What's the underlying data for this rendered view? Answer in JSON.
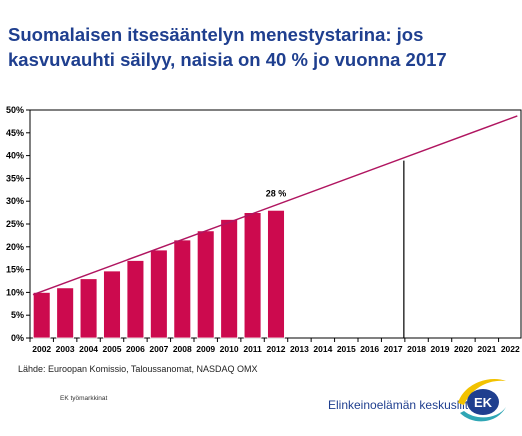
{
  "title": {
    "line1": "Suomalaisen itsesääntelyn menestystarina: jos",
    "line2": "kasvuvauhti säilyy, naisia on 40 % jo vuonna 2017"
  },
  "source": "Lähde: Euroopan Komissio, Taloussanomat, NASDAQ OMX",
  "footnote": "EK työmarkkinat",
  "logo": {
    "text": "Elinkeinoelämän keskusliitto",
    "badge": "EK"
  },
  "colors": {
    "bar": "#cc0a4e",
    "trend": "#b01560",
    "title": "#1f3f8f",
    "logo_blue": "#1f3f8f",
    "logo_yellow": "#f2c200",
    "logo_teal": "#2fa6b5"
  },
  "chart_data": {
    "type": "bar",
    "categories": [
      "2002",
      "2003",
      "2004",
      "2005",
      "2006",
      "2007",
      "2008",
      "2009",
      "2010",
      "2011",
      "2012",
      "2013",
      "2014",
      "2015",
      "2016",
      "2017",
      "2018",
      "2019",
      "2020",
      "2021",
      "2022"
    ],
    "values": [
      10,
      11,
      13,
      14.7,
      17,
      19.3,
      21.5,
      23.5,
      26,
      27.5,
      28,
      null,
      null,
      null,
      null,
      null,
      null,
      null,
      null,
      null,
      null
    ],
    "trend": {
      "x": [
        "2002",
        "2022"
      ],
      "y": [
        9.5,
        48.7
      ]
    },
    "marker_category": "2017",
    "data_label": {
      "category": "2012",
      "text": "28 %"
    },
    "yticks": [
      "0%",
      "5%",
      "10%",
      "15%",
      "20%",
      "25%",
      "30%",
      "35%",
      "40%",
      "45%",
      "50%"
    ],
    "ylim": [
      0,
      50
    ],
    "grid": false,
    "legend": "none"
  }
}
